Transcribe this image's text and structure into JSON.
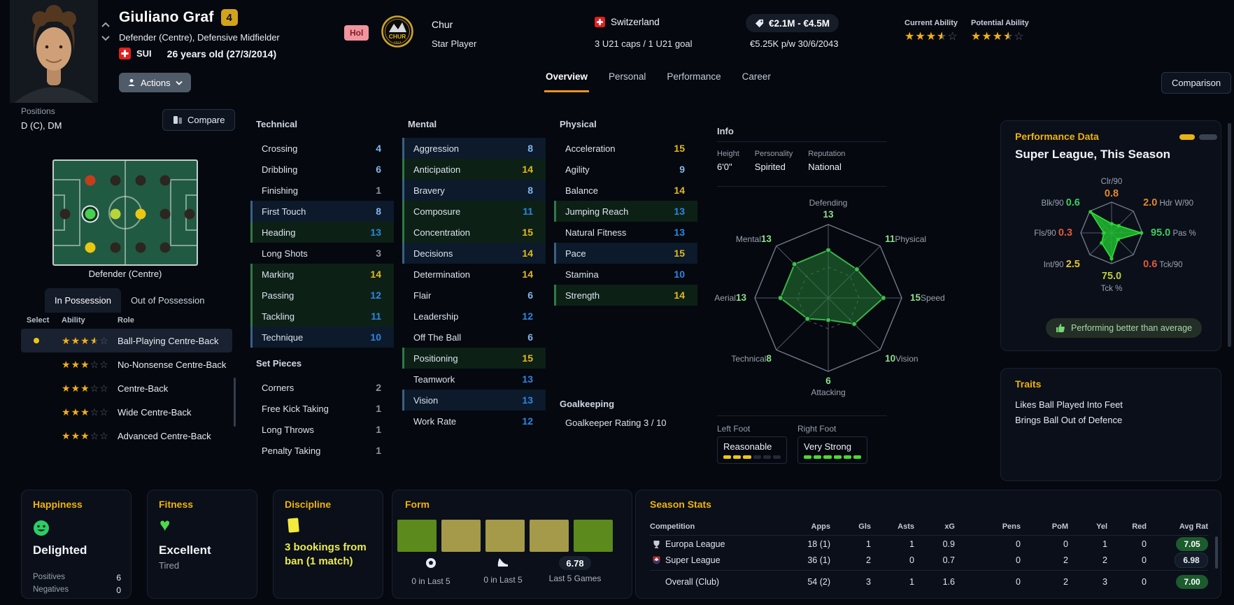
{
  "header": {
    "name": "Giuliano Graf",
    "squad_number": "4",
    "positions_summary": "Defender (Centre), Defensive Midfielder",
    "nationality_code": "SUI",
    "age": "26 years old (27/3/2014)",
    "actions_label": "Actions",
    "availability_badge": "Hol",
    "club_name": "Chur",
    "club_status": "Star Player",
    "crest_text": "CHUR",
    "crest_year": "1913",
    "nation_name": "Switzerland",
    "intl_record": "3 U21 caps / 1 U21 goal",
    "transfer_value": "€2.1M - €4.5M",
    "wage_and_contract": "€5.25K p/w 30/6/2043",
    "current_ability_label": "Current Ability",
    "current_ability_stars": 3.5,
    "potential_ability_label": "Potential Ability",
    "potential_ability_stars": 3.5,
    "tabs": [
      {
        "label": "Overview",
        "active": true
      },
      {
        "label": "Personal",
        "active": false
      },
      {
        "label": "Performance",
        "active": false
      },
      {
        "label": "Career",
        "active": false
      }
    ],
    "comparison_label": "Comparison"
  },
  "positions_panel": {
    "label": "Positions",
    "value": "D (C), DM",
    "compare_label": "Compare",
    "pitch_caption": "Defender (Centre)",
    "possession_tabs": [
      {
        "label": "In Possession",
        "active": true
      },
      {
        "label": "Out of Possession",
        "active": false
      }
    ],
    "role_table_headers": [
      "Select",
      "Ability",
      "Role"
    ],
    "roles": [
      {
        "selected": true,
        "stars": 3.5,
        "role": "Ball-Playing Centre-Back"
      },
      {
        "selected": false,
        "stars": 3,
        "role": "No-Nonsense Centre-Back"
      },
      {
        "selected": false,
        "stars": 3,
        "role": "Centre-Back"
      },
      {
        "selected": false,
        "stars": 3,
        "role": "Wide Centre-Back"
      },
      {
        "selected": false,
        "stars": 3,
        "role": "Advanced Centre-Back"
      }
    ],
    "pitch_dots": [
      {
        "col": 0,
        "row": 1,
        "rating": "unable"
      },
      {
        "col": 1,
        "row": 0,
        "rating": "awkward"
      },
      {
        "col": 1,
        "row": 1,
        "rating": "natural",
        "selected": true
      },
      {
        "col": 1,
        "row": 2,
        "rating": "competent"
      },
      {
        "col": 2,
        "row": 0,
        "rating": "unable"
      },
      {
        "col": 2,
        "row": 1,
        "rating": "accomplished"
      },
      {
        "col": 2,
        "row": 2,
        "rating": "unable"
      },
      {
        "col": 3,
        "row": 0,
        "rating": "unable"
      },
      {
        "col": 3,
        "row": 1,
        "rating": "competent"
      },
      {
        "col": 3,
        "row": 2,
        "rating": "unable"
      },
      {
        "col": 4,
        "row": 0,
        "rating": "unable"
      },
      {
        "col": 4,
        "row": 1,
        "rating": "unable"
      },
      {
        "col": 4,
        "row": 2,
        "rating": "unable"
      },
      {
        "col": 5,
        "row": 1,
        "rating": "unable"
      }
    ],
    "dot_colors": {
      "natural": "#46d04e",
      "accomplished": "#b9d438",
      "competent": "#eac811",
      "awkward": "#c63d1d",
      "unable": "#2c2620"
    }
  },
  "attributes": {
    "technical": {
      "title": "Technical",
      "items": [
        {
          "name": "Crossing",
          "value": 4
        },
        {
          "name": "Dribbling",
          "value": 6
        },
        {
          "name": "Finishing",
          "value": 1
        },
        {
          "name": "First Touch",
          "value": 8,
          "highlight": "blue"
        },
        {
          "name": "Heading",
          "value": 13,
          "highlight": "green"
        },
        {
          "name": "Long Shots",
          "value": 3
        },
        {
          "name": "Marking",
          "value": 14,
          "highlight": "green"
        },
        {
          "name": "Passing",
          "value": 12,
          "highlight": "green"
        },
        {
          "name": "Tackling",
          "value": 11,
          "highlight": "green"
        },
        {
          "name": "Technique",
          "value": 10,
          "highlight": "blue"
        }
      ]
    },
    "set_pieces": {
      "title": "Set Pieces",
      "items": [
        {
          "name": "Corners",
          "value": 2
        },
        {
          "name": "Free Kick Taking",
          "value": 1
        },
        {
          "name": "Long Throws",
          "value": 1
        },
        {
          "name": "Penalty Taking",
          "value": 1
        }
      ]
    },
    "mental": {
      "title": "Mental",
      "items": [
        {
          "name": "Aggression",
          "value": 8,
          "highlight": "blue"
        },
        {
          "name": "Anticipation",
          "value": 14,
          "highlight": "green"
        },
        {
          "name": "Bravery",
          "value": 8,
          "highlight": "blue"
        },
        {
          "name": "Composure",
          "value": 11,
          "highlight": "green"
        },
        {
          "name": "Concentration",
          "value": 15,
          "highlight": "green"
        },
        {
          "name": "Decisions",
          "value": 14,
          "highlight": "blue"
        },
        {
          "name": "Determination",
          "value": 14
        },
        {
          "name": "Flair",
          "value": 6
        },
        {
          "name": "Leadership",
          "value": 12
        },
        {
          "name": "Off The Ball",
          "value": 6
        },
        {
          "name": "Positioning",
          "value": 15,
          "highlight": "green"
        },
        {
          "name": "Teamwork",
          "value": 13
        },
        {
          "name": "Vision",
          "value": 13,
          "highlight": "blue"
        },
        {
          "name": "Work Rate",
          "value": 12
        }
      ]
    },
    "physical": {
      "title": "Physical",
      "items": [
        {
          "name": "Acceleration",
          "value": 15
        },
        {
          "name": "Agility",
          "value": 9
        },
        {
          "name": "Balance",
          "value": 14
        },
        {
          "name": "Jumping Reach",
          "value": 13,
          "highlight": "green"
        },
        {
          "name": "Natural Fitness",
          "value": 13
        },
        {
          "name": "Pace",
          "value": 15,
          "highlight": "blue"
        },
        {
          "name": "Stamina",
          "value": 10
        },
        {
          "name": "Strength",
          "value": 14,
          "highlight": "green"
        }
      ]
    },
    "goalkeeping_title": "Goalkeeping",
    "goalkeeper_rating": "Goalkeeper Rating 3 / 10"
  },
  "info_panel": {
    "title": "Info",
    "fields": [
      {
        "label": "Height",
        "value": "6'0\""
      },
      {
        "label": "Personality",
        "value": "Spirited"
      },
      {
        "label": "Reputation",
        "value": "National"
      }
    ],
    "left_foot_label": "Left Foot",
    "left_foot_value": "Reasonable",
    "left_foot_segments": 3,
    "right_foot_label": "Right Foot",
    "right_foot_value": "Very Strong",
    "right_foot_segments": 6,
    "foot_colors": {
      "left": "#eac811",
      "right": "#4cd930",
      "empty": "#222b39"
    }
  },
  "performance_panel": {
    "title": "Performance Data",
    "subtitle": "Super League, This Season",
    "badge": "Performing better than average"
  },
  "traits_panel": {
    "title": "Traits",
    "items": [
      "Likes Ball Played Into Feet",
      "Brings Ball Out of Defence"
    ]
  },
  "happiness_panel": {
    "title": "Happiness",
    "status": "Delighted",
    "rows": [
      {
        "label": "Positives",
        "value": "6"
      },
      {
        "label": "Negatives",
        "value": "0"
      }
    ]
  },
  "fitness_panel": {
    "title": "Fitness",
    "status": "Excellent",
    "substatus": "Tired"
  },
  "discipline_panel": {
    "title": "Discipline",
    "text": "3 bookings from ban (1 match)"
  },
  "form_panel": {
    "title": "Form",
    "results": [
      "good",
      "average",
      "average",
      "average",
      "good"
    ],
    "result_colors": {
      "good": "#5c8a1d",
      "average": "#a5994a"
    },
    "goals_caption": "0 in Last 5",
    "assists_caption": "0 in Last 5",
    "rating_value": "6.78",
    "rating_caption": "Last 5 Games"
  },
  "season_stats": {
    "title": "Season Stats",
    "headers": [
      "Competition",
      "Apps",
      "Gls",
      "Asts",
      "xG",
      "Pens",
      "PoM",
      "Yel",
      "Red",
      "Avg Rat"
    ],
    "rows": [
      {
        "icon": "europa-league",
        "competition": "Europa League",
        "values": [
          "18 (1)",
          "1",
          "1",
          "0.9",
          "0",
          "0",
          "1",
          "0"
        ],
        "avg_rat": "7.05",
        "avg_rat_style": "good"
      },
      {
        "icon": "super-league",
        "competition": "Super League",
        "values": [
          "36 (1)",
          "2",
          "0",
          "0.7",
          "0",
          "2",
          "2",
          "0"
        ],
        "avg_rat": "6.98",
        "avg_rat_style": "neutral"
      },
      {
        "icon": "",
        "competition": "Overall (Club)",
        "values": [
          "54 (2)",
          "3",
          "1",
          "1.6",
          "0",
          "2",
          "3",
          "0"
        ],
        "avg_rat": "7.00",
        "avg_rat_style": "good"
      }
    ]
  },
  "chart_data": [
    {
      "type": "radar",
      "title": "Attribute polygon",
      "axes": [
        "Defending",
        "Physical",
        "Speed",
        "Vision",
        "Attacking",
        "Technical",
        "Aerial",
        "Mental"
      ],
      "values": [
        13,
        11,
        15,
        10,
        6,
        8,
        13,
        13
      ],
      "max": 20,
      "fill_color": "#247e36",
      "stroke_color": "#3cb04a",
      "value_color": "#8ce08a",
      "label_color": "#98a1ae",
      "average_ring_fraction": 0.42,
      "legend_position": "none",
      "grid": "octagon-outline"
    },
    {
      "type": "radar",
      "title": "Performance Data",
      "subtitle": "Super League, This Season",
      "axes": [
        "Clr/90",
        "Hdr W/90",
        "Pas %",
        "Tck/90",
        "Tck %",
        "Int/90",
        "Fls/90",
        "Blk/90"
      ],
      "values": [
        0.8,
        2.0,
        95.0,
        0.6,
        75.0,
        2.5,
        0.3,
        0.6
      ],
      "value_colors": [
        "#e6872b",
        "#e6872b",
        "#3ecb5d",
        "#e05a3a",
        "#bfcf35",
        "#e5c62b",
        "#e05a3a",
        "#3ecb5d"
      ],
      "fractions": [
        0.3,
        0.33,
        0.97,
        0.3,
        0.84,
        0.46,
        0.25,
        0.97
      ],
      "fill_color": "#1fc62f",
      "label_color": "#9aa4b2",
      "average_ring_fraction": 0.33,
      "legend_position": "none",
      "grid": "octagon-outline"
    }
  ]
}
